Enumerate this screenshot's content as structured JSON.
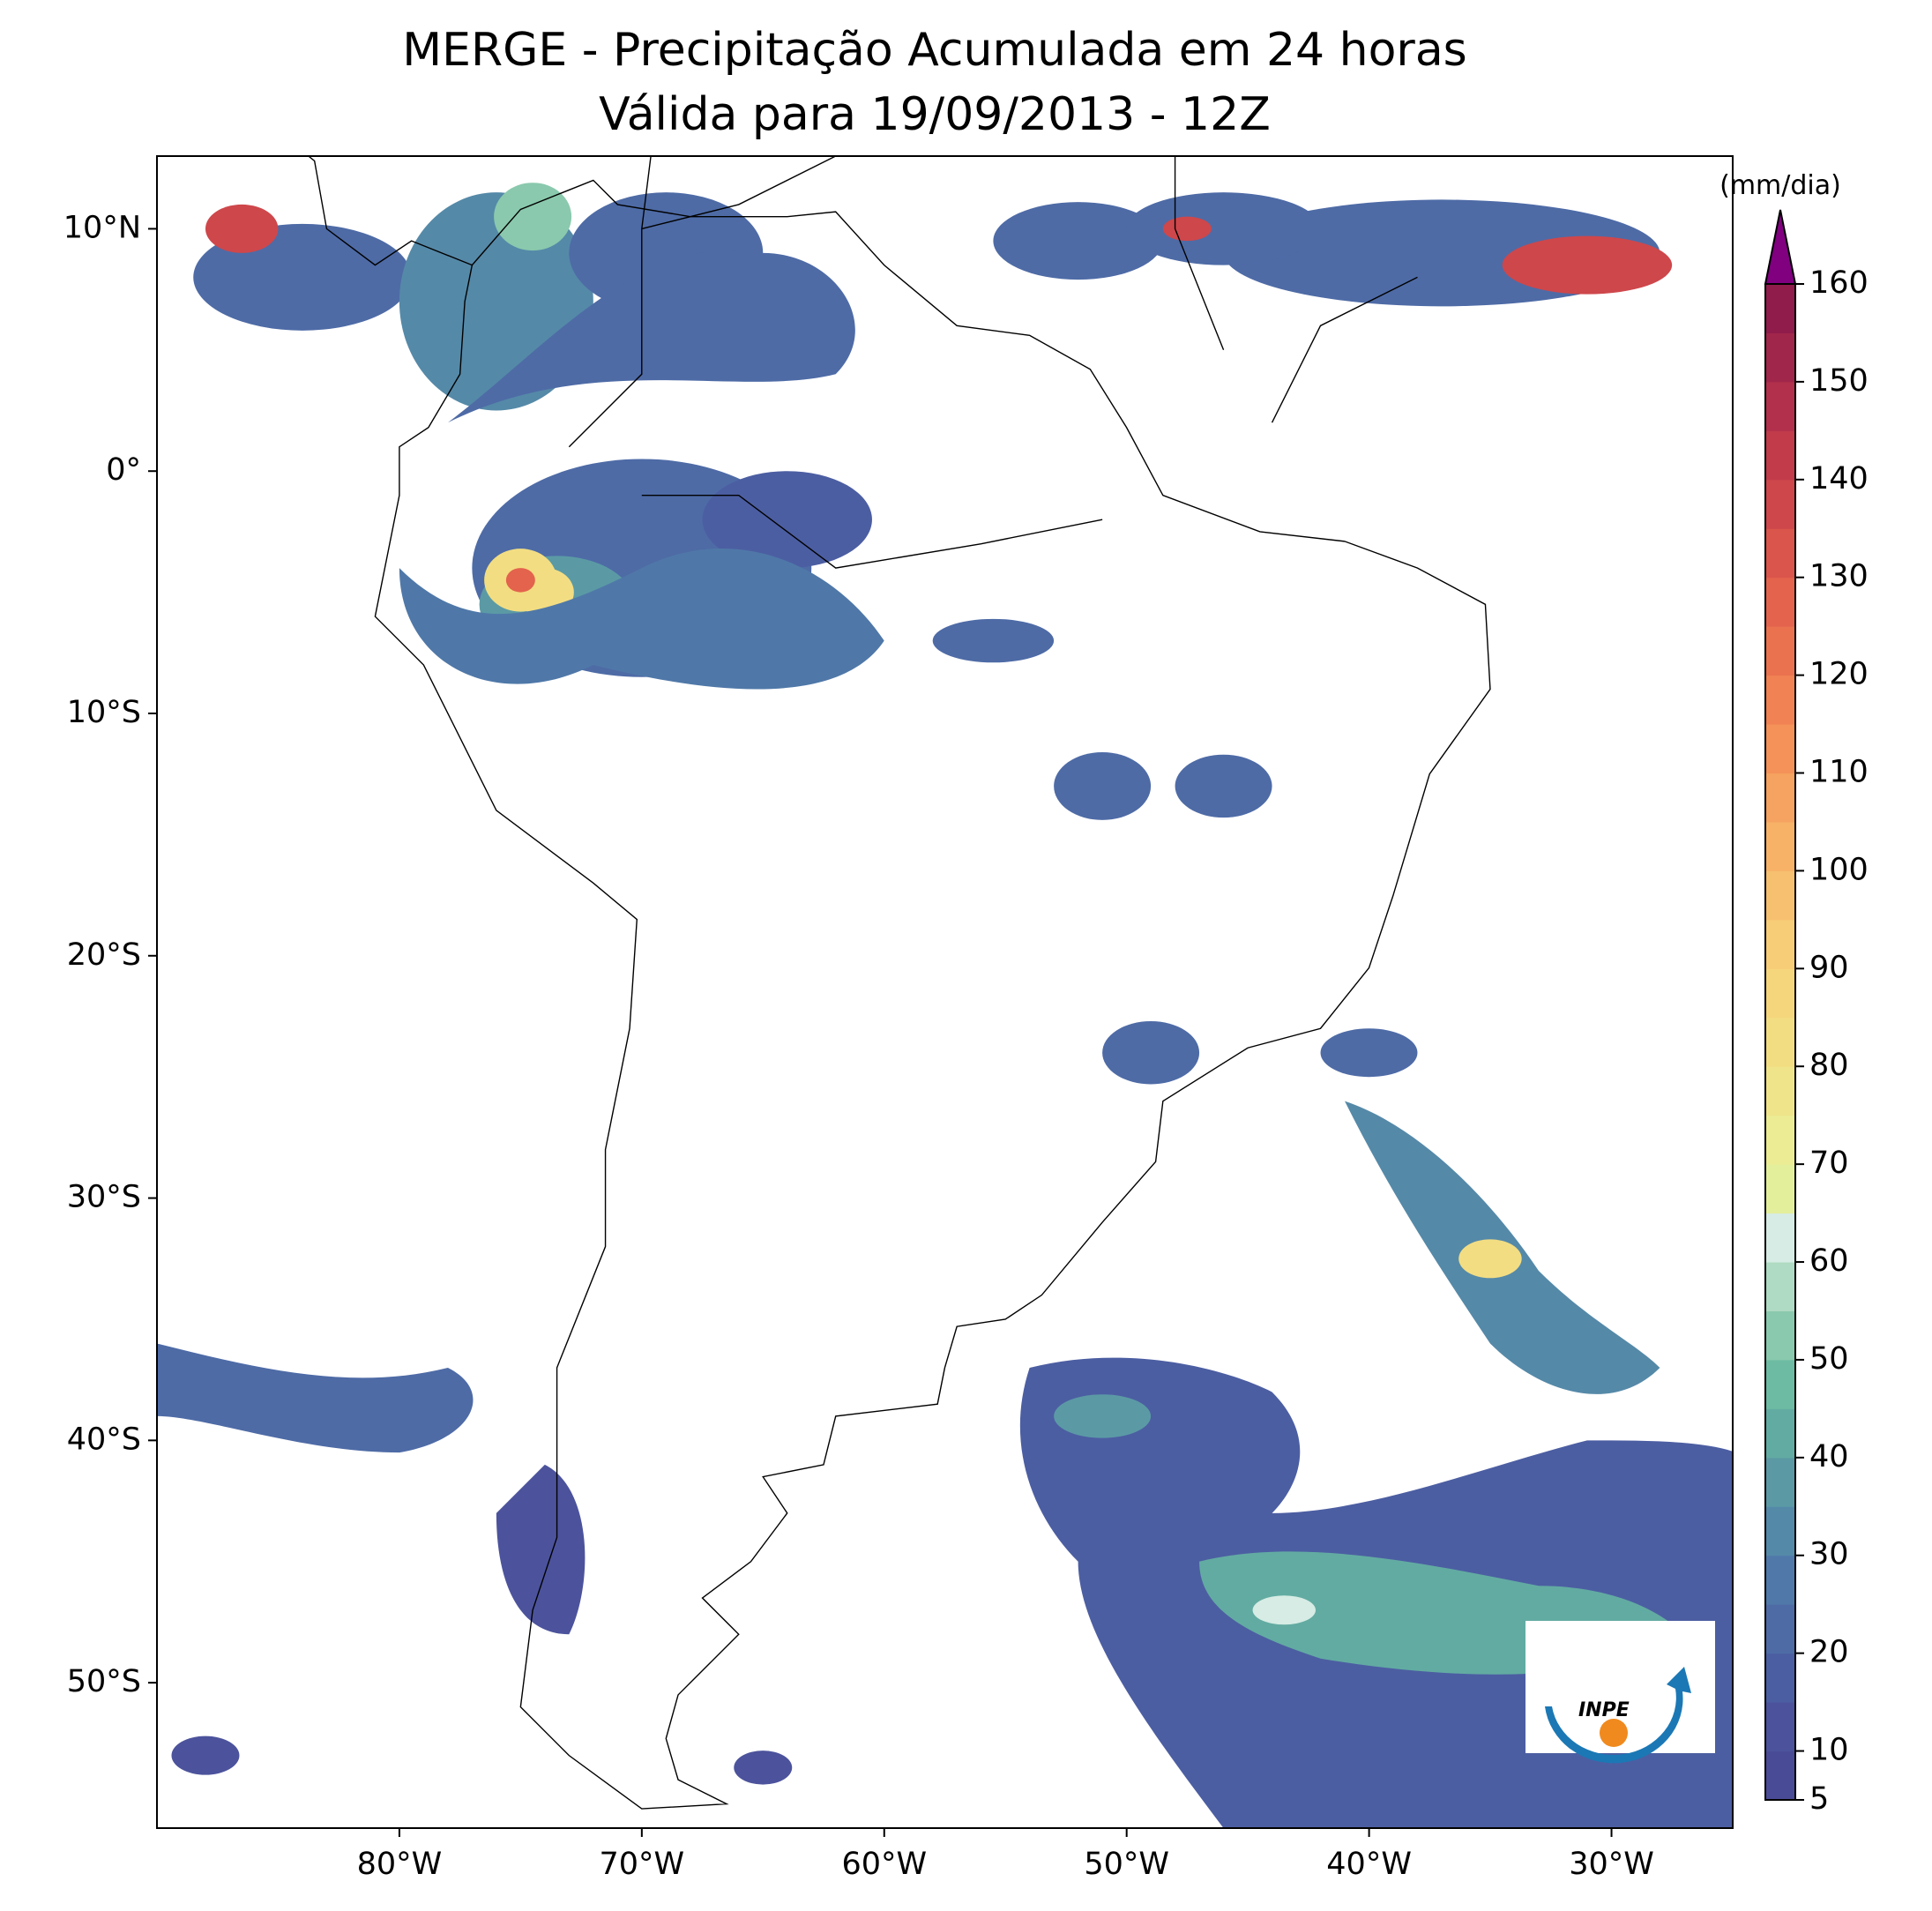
{
  "title": "MERGE - Precipitação Acumulada em 24 horas",
  "subtitle": "Válida para 19/09/2013 - 12Z",
  "map": {
    "xlim": [
      -90,
      -25
    ],
    "ylim": [
      -56,
      13
    ],
    "xticks": [
      {
        "value": -80,
        "label": "80°W"
      },
      {
        "value": -70,
        "label": "70°W"
      },
      {
        "value": -60,
        "label": "60°W"
      },
      {
        "value": -50,
        "label": "50°W"
      },
      {
        "value": -40,
        "label": "40°W"
      },
      {
        "value": -30,
        "label": "30°W"
      }
    ],
    "yticks": [
      {
        "value": 10,
        "label": "10°N"
      },
      {
        "value": 0,
        "label": "0°"
      },
      {
        "value": -10,
        "label": "10°S"
      },
      {
        "value": -20,
        "label": "20°S"
      },
      {
        "value": -30,
        "label": "30°S"
      },
      {
        "value": -40,
        "label": "40°S"
      },
      {
        "value": -50,
        "label": "50°S"
      }
    ]
  },
  "colorbar": {
    "label": "(mm/dia)",
    "lim": [
      5,
      160
    ],
    "ticks": [
      5,
      10,
      20,
      30,
      40,
      50,
      60,
      70,
      80,
      90,
      100,
      110,
      120,
      130,
      140,
      150,
      160
    ],
    "colors": [
      "#4a4b96",
      "#4c539c",
      "#4c5ea2",
      "#4e6ba6",
      "#5079a9",
      "#5589a8",
      "#5b9aa5",
      "#62aba2",
      "#6dbba3",
      "#8ac9ad",
      "#afdac3",
      "#d6ece4",
      "#e4ef9c",
      "#ebec94",
      "#f0e48a",
      "#f3dd82",
      "#f6d67c",
      "#f7cd77",
      "#f7c070",
      "#f7b268",
      "#f6a260",
      "#f49259",
      "#f08253",
      "#ea724f",
      "#e3634d",
      "#da554b",
      "#ce474b",
      "#c13b4b",
      "#b2304b",
      "#a1264b",
      "#8f1c4b"
    ],
    "extend_color": "#800080"
  },
  "logo": "INPE"
}
